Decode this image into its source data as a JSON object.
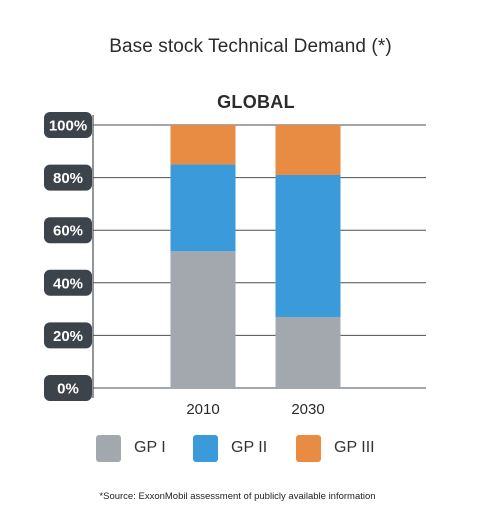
{
  "title": "Base stock Technical Demand (*)",
  "subtitle": "GLOBAL",
  "footnote": "*Source: ExxonMobil assessment of publicly available information",
  "legend": [
    {
      "label": "GP I",
      "color": "#a3a8ae"
    },
    {
      "label": "GP II",
      "color": "#3b9ad9"
    },
    {
      "label": "GP III",
      "color": "#e88b43"
    }
  ],
  "chart_data": {
    "type": "bar",
    "stacked": true,
    "title": "Base stock Technical Demand (*)",
    "subtitle": "GLOBAL",
    "categories": [
      "2010",
      "2030"
    ],
    "series": [
      {
        "name": "GP I",
        "values": [
          52,
          27
        ],
        "color": "#a3a8ae"
      },
      {
        "name": "GP II",
        "values": [
          33,
          54
        ],
        "color": "#3b9ad9"
      },
      {
        "name": "GP III",
        "values": [
          15,
          19
        ],
        "color": "#e88b43"
      }
    ],
    "yticks": [
      "0%",
      "20%",
      "40%",
      "60%",
      "80%",
      "100%"
    ],
    "ylim": [
      0,
      100
    ],
    "grid": true,
    "legend_position": "bottom"
  }
}
